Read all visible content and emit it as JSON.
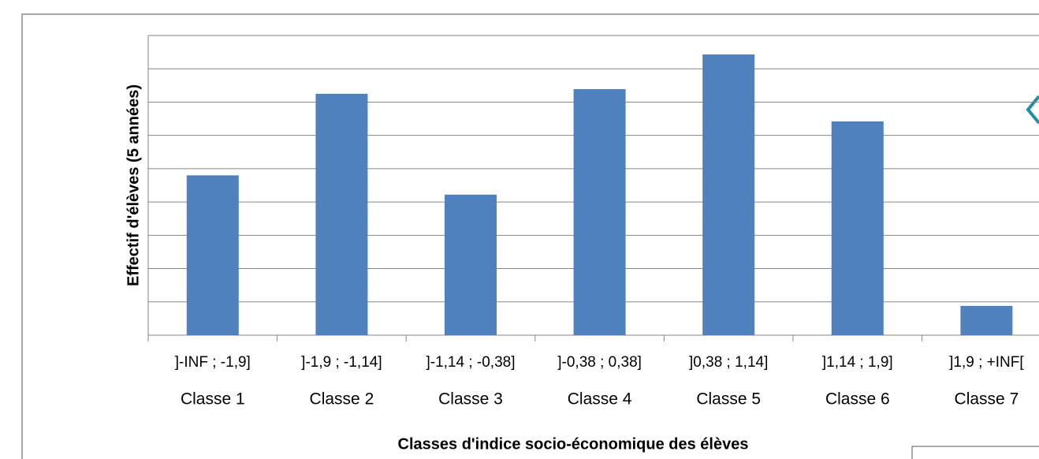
{
  "chart_data": {
    "type": "bar",
    "y_label": "Effectif d'élèves (5 années)",
    "x_label": "Classes d'indice socio-économique des élèves",
    "categories": [
      "]-INF ; -1,9]",
      "]-1,9 ; -1,14]",
      "]-1,14 ; -0,38]",
      "]-0,38 ; 0,38]",
      "]0,38 ; 1,14]",
      "]1,14 ; 1,9]",
      "]1,9 ; +INF["
    ],
    "category_groups": [
      "Classe 1",
      "Classe 2",
      "Classe 3",
      "Classe 4",
      "Classe 5",
      "Classe 6",
      "Classe 7"
    ],
    "values": [
      4.8,
      7.25,
      4.22,
      7.39,
      8.43,
      6.42,
      0.88
    ],
    "color": "#4f81bd",
    "ylim": [
      0,
      9
    ],
    "yticks": [
      0,
      1,
      2,
      3,
      4,
      5,
      6,
      7,
      8,
      9
    ],
    "grid": true
  }
}
